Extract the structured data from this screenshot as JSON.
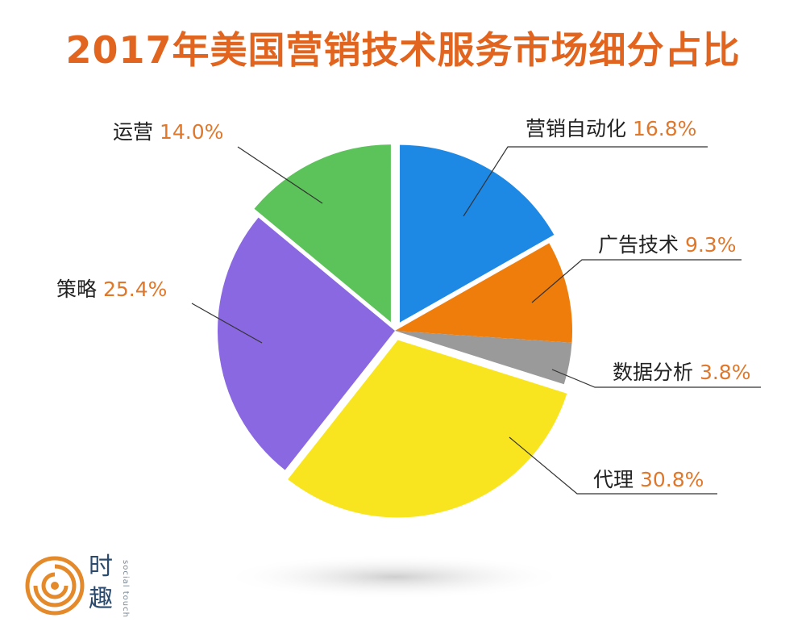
{
  "chart_data": {
    "type": "pie",
    "title": "2017年美国营销技术服务市场细分占比",
    "slices": [
      {
        "name": "营销自动化",
        "value": 16.8,
        "label": "16.8%",
        "color": "#1e88e5",
        "exploded": true
      },
      {
        "name": "广告技术",
        "value": 9.3,
        "label": "9.3%",
        "color": "#ef7d0b",
        "exploded": false
      },
      {
        "name": "数据分析",
        "value": 3.8,
        "label": "3.8%",
        "color": "#9a9a9a",
        "exploded": false
      },
      {
        "name": "代理",
        "value": 30.8,
        "label": "30.8%",
        "color": "#f9e51f",
        "exploded": true
      },
      {
        "name": "策略",
        "value": 25.4,
        "label": "25.4%",
        "color": "#8a68e2",
        "exploded": false
      },
      {
        "name": "运营",
        "value": 14.0,
        "label": "14.0%",
        "color": "#5cc25a",
        "exploded": true
      }
    ]
  },
  "logo": {
    "char1": "时",
    "char2": "趣",
    "english": "social touch",
    "colors": {
      "ring": "#e58a2b",
      "text": "#2a4a6e"
    }
  }
}
